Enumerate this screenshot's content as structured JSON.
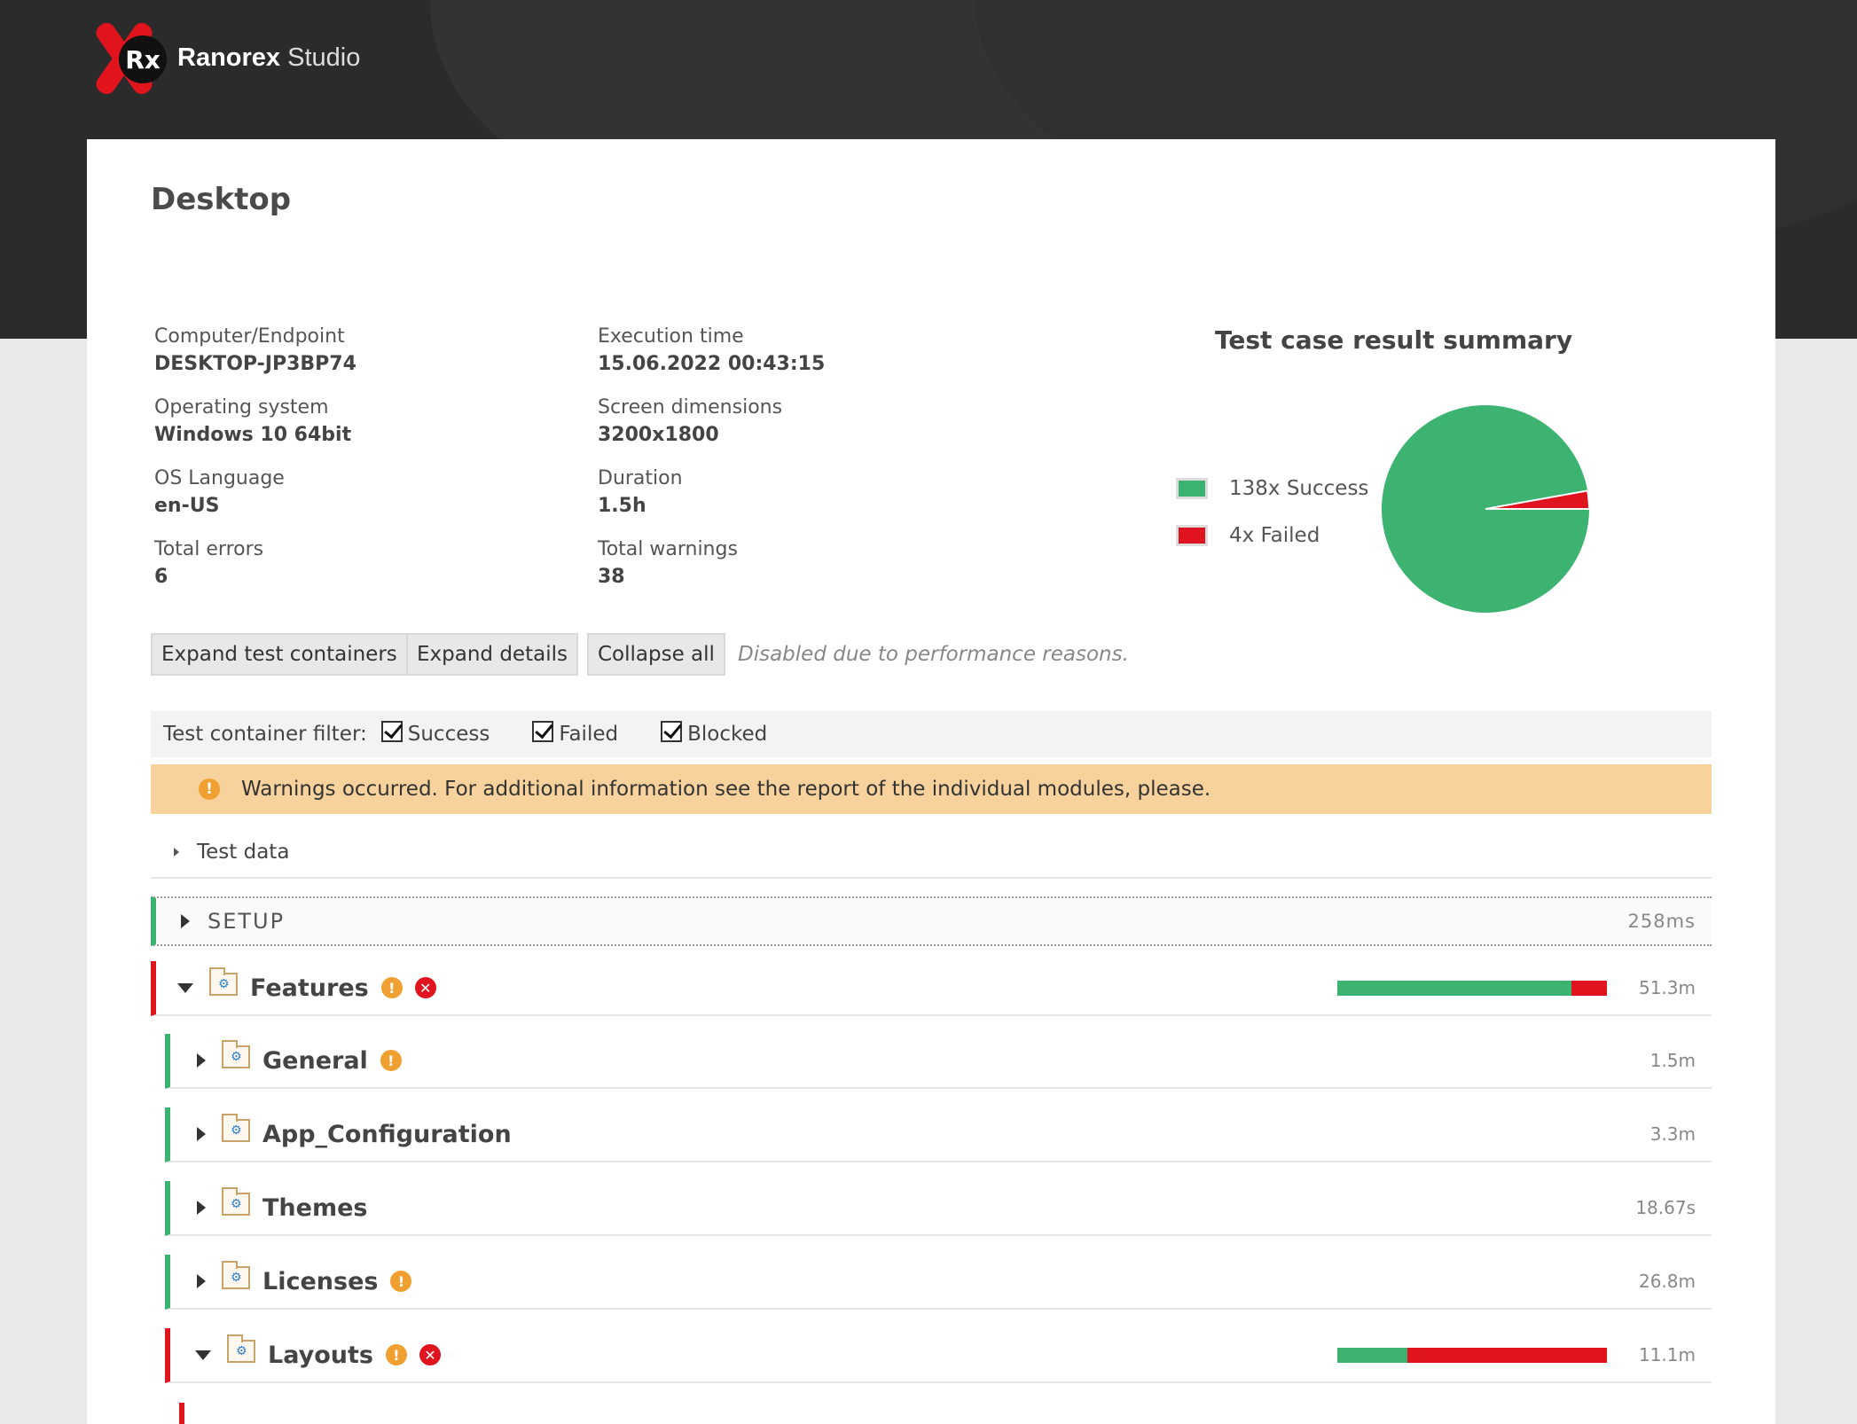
{
  "app": {
    "brand_bold": "Ranorex",
    "brand_light": "Studio",
    "logo_mark": "Rx"
  },
  "page": {
    "title": "Desktop"
  },
  "info": {
    "computer_label": "Computer/Endpoint",
    "computer_value": "DESKTOP-JP3BP74",
    "os_label": "Operating system",
    "os_value": "Windows 10 64bit",
    "lang_label": "OS Language",
    "lang_value": "en-US",
    "errors_label": "Total errors",
    "errors_value": "6",
    "exec_label": "Execution time",
    "exec_value": "15.06.2022 00:43:15",
    "screen_label": "Screen dimensions",
    "screen_value": "3200x1800",
    "duration_label": "Duration",
    "duration_value": "1.5h",
    "warnings_label": "Total warnings",
    "warnings_value": "38"
  },
  "summary": {
    "title": "Test case result summary",
    "success_label": "138x Success",
    "failed_label": "4x Failed",
    "success_count": 138,
    "failed_count": 4,
    "success_color": "#3cb371",
    "failed_color": "#e0141e"
  },
  "buttons": {
    "expand_containers": "Expand test containers",
    "expand_details": "Expand details",
    "collapse_all": "Collapse all",
    "disabled_note": "Disabled due to performance reasons."
  },
  "filter": {
    "label": "Test container filter:",
    "success": "Success",
    "failed": "Failed",
    "blocked": "Blocked"
  },
  "warning_banner": {
    "text": "Warnings occurred. For additional information see the report of the individual modules, please."
  },
  "test_data": {
    "label": "Test data"
  },
  "setup": {
    "label": "SETUP",
    "time": "258ms"
  },
  "rows": [
    {
      "name": "Features",
      "time": "51.3m",
      "status": "failed",
      "expanded": true,
      "warn": true,
      "error": true,
      "success_fraction": 0.87
    },
    {
      "name": "General",
      "time": "1.5m",
      "status": "success",
      "expanded": false,
      "warn": true,
      "error": false
    },
    {
      "name": "App_Configuration",
      "time": "3.3m",
      "status": "success",
      "expanded": false,
      "warn": false,
      "error": false
    },
    {
      "name": "Themes",
      "time": "18.67s",
      "status": "success",
      "expanded": false,
      "warn": false,
      "error": false
    },
    {
      "name": "Licenses",
      "time": "26.8m",
      "status": "success",
      "expanded": false,
      "warn": true,
      "error": false
    },
    {
      "name": "Layouts",
      "time": "11.1m",
      "status": "failed",
      "expanded": true,
      "warn": true,
      "error": true,
      "success_fraction": 0.26
    }
  ],
  "icons": {
    "warn": "!",
    "error": "✕"
  }
}
